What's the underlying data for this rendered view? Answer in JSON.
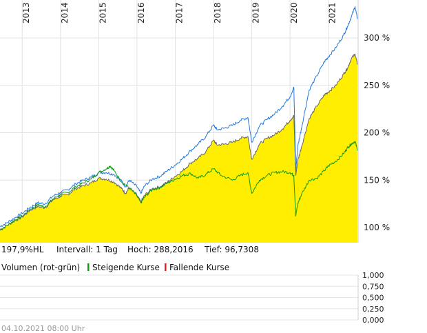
{
  "chart_data": {
    "type": "area",
    "x_years": [
      "2013",
      "2014",
      "2015",
      "2016",
      "2017",
      "2018",
      "2019",
      "2020",
      "2021"
    ],
    "ylabels": [
      "300 %",
      "250 %",
      "200 %",
      "150 %",
      "100 %"
    ],
    "yticks": [
      300,
      250,
      200,
      150,
      100
    ],
    "ylim": [
      84,
      340
    ],
    "xlim": [
      2012.42,
      2021.78
    ],
    "series": [
      {
        "name": "yellow-area",
        "color": "#ffee00",
        "x": [
          2012.42,
          2012.6,
          2012.8,
          2013.0,
          2013.2,
          2013.4,
          2013.6,
          2013.8,
          2014.0,
          2014.2,
          2014.4,
          2014.6,
          2014.8,
          2015.0,
          2015.2,
          2015.4,
          2015.6,
          2015.7,
          2015.8,
          2016.0,
          2016.1,
          2016.2,
          2016.4,
          2016.6,
          2016.8,
          2017.0,
          2017.2,
          2017.4,
          2017.6,
          2017.8,
          2018.0,
          2018.1,
          2018.3,
          2018.5,
          2018.7,
          2018.9,
          2019.0,
          2019.2,
          2019.4,
          2019.6,
          2019.8,
          2020.0,
          2020.1,
          2020.15,
          2020.2,
          2020.3,
          2020.5,
          2020.7,
          2020.9,
          2021.0,
          2021.2,
          2021.4,
          2021.5,
          2021.6,
          2021.7,
          2021.76
        ],
        "values": [
          98,
          102,
          107,
          111,
          118,
          122,
          121,
          129,
          133,
          135,
          141,
          144,
          147,
          152,
          151,
          148,
          141,
          136,
          142,
          134,
          127,
          134,
          141,
          143,
          148,
          154,
          160,
          168,
          173,
          180,
          192,
          187,
          188,
          190,
          194,
          196,
          172,
          188,
          194,
          198,
          204,
          213,
          218,
          155,
          170,
          185,
          215,
          228,
          240,
          243,
          250,
          262,
          268,
          278,
          283,
          272
        ]
      },
      {
        "name": "grey-line",
        "color": "#666666",
        "x": [
          2012.42,
          2012.6,
          2012.8,
          2013.0,
          2013.2,
          2013.4,
          2013.6,
          2013.8,
          2014.0,
          2014.2,
          2014.4,
          2014.6,
          2014.8,
          2015.0,
          2015.2,
          2015.4,
          2015.6,
          2015.7,
          2015.8,
          2016.0,
          2016.1,
          2016.2,
          2016.4,
          2016.6,
          2016.8,
          2017.0,
          2017.2,
          2017.4,
          2017.6,
          2017.8,
          2018.0,
          2018.1,
          2018.3,
          2018.5,
          2018.7,
          2018.9,
          2019.0,
          2019.2,
          2019.4,
          2019.6,
          2019.8,
          2020.0,
          2020.1,
          2020.15,
          2020.2,
          2020.3,
          2020.5,
          2020.7,
          2020.9,
          2021.0,
          2021.2,
          2021.4,
          2021.5,
          2021.6,
          2021.7,
          2021.76
        ],
        "values": [
          98,
          102,
          107,
          111,
          118,
          122,
          121,
          129,
          133,
          135,
          141,
          144,
          147,
          152,
          151,
          148,
          141,
          136,
          142,
          134,
          127,
          134,
          141,
          143,
          148,
          154,
          160,
          168,
          173,
          180,
          192,
          187,
          188,
          190,
          194,
          196,
          172,
          188,
          194,
          198,
          204,
          213,
          218,
          155,
          170,
          185,
          215,
          228,
          240,
          243,
          250,
          262,
          268,
          278,
          283,
          272
        ]
      },
      {
        "name": "blue-line",
        "color": "#2277dd",
        "x": [
          2012.42,
          2012.6,
          2012.8,
          2013.0,
          2013.2,
          2013.4,
          2013.6,
          2013.8,
          2014.0,
          2014.2,
          2014.4,
          2014.6,
          2014.8,
          2015.0,
          2015.2,
          2015.4,
          2015.6,
          2015.7,
          2015.8,
          2016.0,
          2016.1,
          2016.2,
          2016.4,
          2016.6,
          2016.8,
          2017.0,
          2017.2,
          2017.4,
          2017.6,
          2017.8,
          2018.0,
          2018.1,
          2018.3,
          2018.5,
          2018.7,
          2018.9,
          2019.0,
          2019.2,
          2019.4,
          2019.6,
          2019.8,
          2020.0,
          2020.1,
          2020.15,
          2020.2,
          2020.3,
          2020.5,
          2020.7,
          2020.9,
          2021.0,
          2021.2,
          2021.4,
          2021.5,
          2021.6,
          2021.7,
          2021.76
        ],
        "values": [
          101,
          105,
          110,
          115,
          121,
          126,
          125,
          133,
          137,
          140,
          146,
          150,
          153,
          158,
          158,
          156,
          149,
          143,
          150,
          143,
          136,
          144,
          151,
          154,
          160,
          166,
          173,
          181,
          188,
          196,
          208,
          203,
          205,
          208,
          213,
          216,
          190,
          207,
          214,
          220,
          228,
          238,
          248,
          160,
          185,
          205,
          245,
          260,
          275,
          280,
          290,
          303,
          312,
          322,
          333,
          320
        ]
      },
      {
        "name": "green-line",
        "color": "#119911",
        "x": [
          2012.42,
          2012.6,
          2012.8,
          2013.0,
          2013.2,
          2013.4,
          2013.6,
          2013.8,
          2014.0,
          2014.2,
          2014.4,
          2014.6,
          2014.8,
          2015.0,
          2015.2,
          2015.3,
          2015.4,
          2015.6,
          2015.8,
          2016.0,
          2016.1,
          2016.2,
          2016.4,
          2016.6,
          2016.8,
          2017.0,
          2017.2,
          2017.4,
          2017.6,
          2017.8,
          2018.0,
          2018.2,
          2018.5,
          2018.7,
          2018.9,
          2019.0,
          2019.2,
          2019.4,
          2019.6,
          2019.8,
          2020.0,
          2020.1,
          2020.15,
          2020.2,
          2020.3,
          2020.5,
          2020.7,
          2020.9,
          2021.0,
          2021.2,
          2021.4,
          2021.5,
          2021.6,
          2021.7,
          2021.76
        ],
        "values": [
          97,
          102,
          108,
          112,
          119,
          124,
          122,
          130,
          135,
          137,
          143,
          147,
          151,
          158,
          162,
          165,
          160,
          148,
          142,
          133,
          126,
          132,
          140,
          142,
          147,
          151,
          155,
          157,
          152,
          156,
          162,
          155,
          150,
          155,
          158,
          136,
          150,
          155,
          158,
          159,
          158,
          155,
          112,
          125,
          135,
          150,
          152,
          160,
          165,
          170,
          178,
          184,
          188,
          191,
          182
        ]
      }
    ]
  },
  "info_line": {
    "value": "197,9%HL",
    "interval": "Intervall: 1 Tag",
    "high": "Hoch: 288,2016",
    "low": "Tief: 96,7308"
  },
  "volume": {
    "label": "Volumen (rot-grün)",
    "rising": "Steigende Kurse",
    "falling": "Fallende Kurse",
    "rising_color": "#119911",
    "falling_color": "#dd2222",
    "ticks": [
      "1,000",
      "0,750",
      "0,500",
      "0,250",
      "0,000"
    ]
  },
  "timestamp": "04.10.2021 08:00 Uhr"
}
